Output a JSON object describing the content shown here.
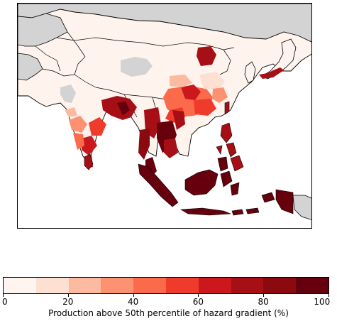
{
  "map": {
    "land_color": "#fff3ee",
    "nodata_color": "#d3d3d3",
    "ocean_color": "#ffffff",
    "border_color": "#000000"
  },
  "colorbar": {
    "label": "Production above 50th percentile of hazard gradient (%)",
    "min": 0,
    "max": 100,
    "ticks": [
      "0",
      "20",
      "40",
      "60",
      "80",
      "100"
    ],
    "colors": [
      "#fff5f0",
      "#fee0d2",
      "#fcbba1",
      "#fc9272",
      "#fb6a4a",
      "#ef3b2c",
      "#cb181d",
      "#a50f15",
      "#8b0a10",
      "#67000d"
    ]
  }
}
